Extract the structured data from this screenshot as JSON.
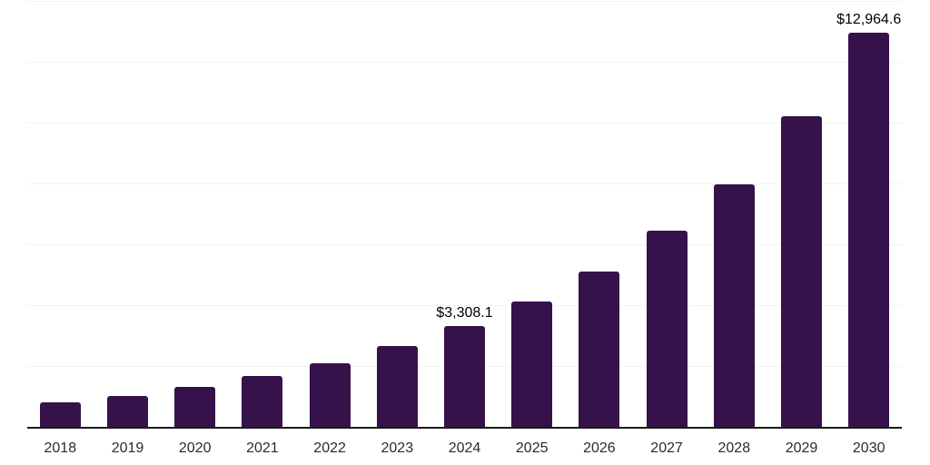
{
  "chart_data": {
    "type": "bar",
    "categories": [
      "2018",
      "2019",
      "2020",
      "2021",
      "2022",
      "2023",
      "2024",
      "2025",
      "2026",
      "2027",
      "2028",
      "2029",
      "2030"
    ],
    "values": [
      810,
      1020,
      1310,
      1670,
      2090,
      2650,
      3308.1,
      4120,
      5100,
      6450,
      7980,
      10200,
      12964.6
    ],
    "values_note": "Only 2024 and 2030 carry visible data labels; remaining values estimated from bar heights against gridlines (one gridline per 2000).",
    "data_labels": [
      {
        "category": "2024",
        "index": 6,
        "text": "$3,308.1"
      },
      {
        "category": "2030",
        "index": 12,
        "text": "$12,964.6"
      }
    ],
    "title": "",
    "xlabel": "",
    "ylabel": "",
    "ylim": [
      0,
      14000
    ],
    "gridline_interval": 2000,
    "grid": "horizontal",
    "legend": "none",
    "currency": "USD"
  },
  "colors": {
    "bar": "#36124A",
    "axis_line": "#1a1a1a",
    "gridline": "#f2f2f2",
    "tick_label": "#2b2b2b",
    "data_label": "#000000",
    "background": "#ffffff"
  }
}
